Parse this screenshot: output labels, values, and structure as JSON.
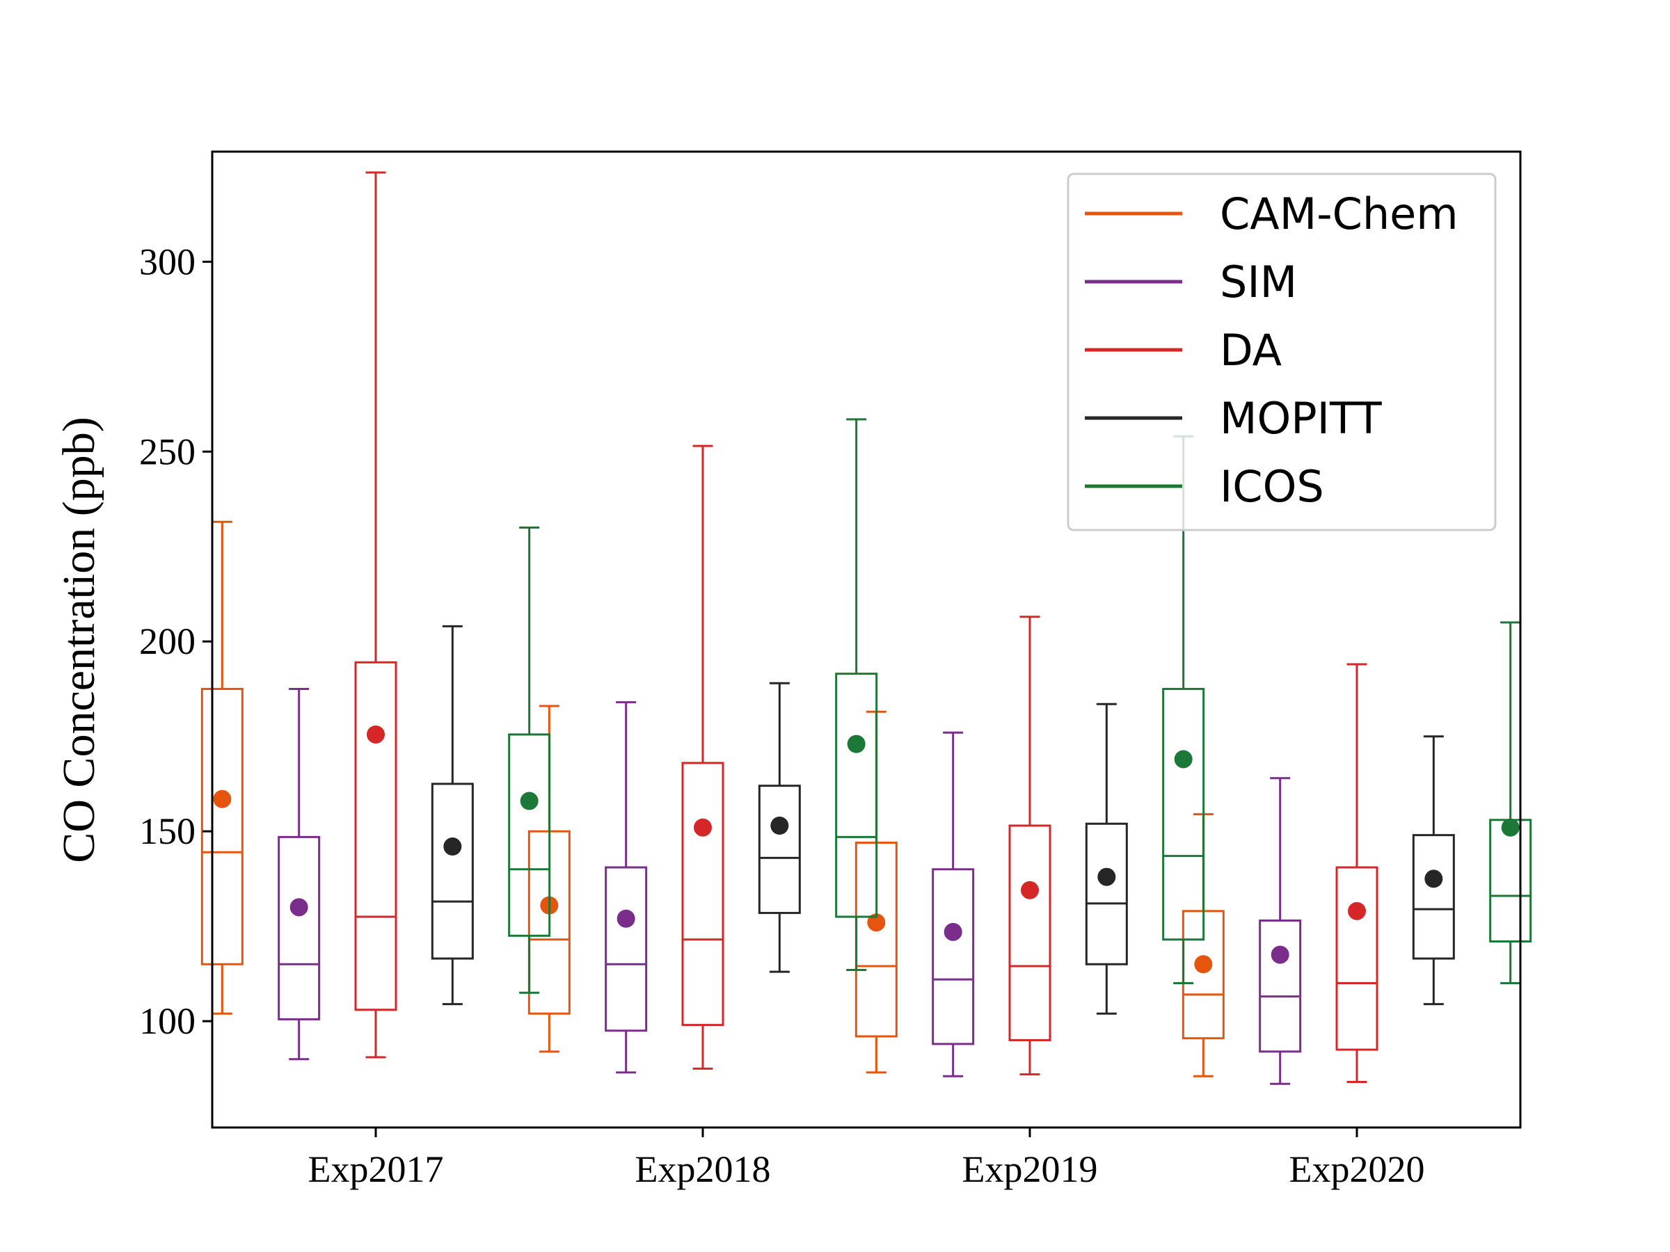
{
  "chart_data": {
    "type": "box",
    "ylabel": "CO Concentration (ppb)",
    "xlabel": "",
    "ylim": [
      72,
      329
    ],
    "yticks": [
      100,
      150,
      200,
      250,
      300
    ],
    "categories": [
      "Exp2017",
      "Exp2018",
      "Exp2019",
      "Exp2020"
    ],
    "legend_position": "top-right",
    "grid": false,
    "series": [
      {
        "name": "CAM-Chem",
        "color": "#e6550d",
        "boxes": [
          {
            "whisker_low": 102,
            "q1": 115,
            "median": 144.5,
            "q3": 187.5,
            "whisker_high": 231.5,
            "mean": 158.5
          },
          {
            "whisker_low": 92,
            "q1": 102,
            "median": 121.5,
            "q3": 150,
            "whisker_high": 183,
            "mean": 130.5
          },
          {
            "whisker_low": 86.5,
            "q1": 96,
            "median": 114.5,
            "q3": 147,
            "whisker_high": 181.5,
            "mean": 126
          },
          {
            "whisker_low": 85.5,
            "q1": 95.5,
            "median": 107,
            "q3": 129,
            "whisker_high": 154.5,
            "mean": 115
          }
        ]
      },
      {
        "name": "SIM",
        "color": "#7b2d8b",
        "boxes": [
          {
            "whisker_low": 90,
            "q1": 100.5,
            "median": 115,
            "q3": 148.5,
            "whisker_high": 187.5,
            "mean": 130
          },
          {
            "whisker_low": 86.5,
            "q1": 97.5,
            "median": 115,
            "q3": 140.5,
            "whisker_high": 184,
            "mean": 127
          },
          {
            "whisker_low": 85.5,
            "q1": 94,
            "median": 111,
            "q3": 140,
            "whisker_high": 176,
            "mean": 123.5
          },
          {
            "whisker_low": 83.5,
            "q1": 92,
            "median": 106.5,
            "q3": 126.5,
            "whisker_high": 164,
            "mean": 117.5
          }
        ]
      },
      {
        "name": "DA",
        "color": "#d62728",
        "boxes": [
          {
            "whisker_low": 90.5,
            "q1": 103,
            "median": 127.5,
            "q3": 194.5,
            "whisker_high": 323.5,
            "mean": 175.5
          },
          {
            "whisker_low": 87.5,
            "q1": 99,
            "median": 121.5,
            "q3": 168,
            "whisker_high": 251.5,
            "mean": 151
          },
          {
            "whisker_low": 86,
            "q1": 95,
            "median": 114.5,
            "q3": 151.5,
            "whisker_high": 206.5,
            "mean": 134.5
          },
          {
            "whisker_low": 84,
            "q1": 92.5,
            "median": 110,
            "q3": 140.5,
            "whisker_high": 194,
            "mean": 129
          }
        ]
      },
      {
        "name": "MOPITT",
        "color": "#262626",
        "boxes": [
          {
            "whisker_low": 104.5,
            "q1": 116.5,
            "median": 131.5,
            "q3": 162.5,
            "whisker_high": 204,
            "mean": 146
          },
          {
            "whisker_low": 113,
            "q1": 128.5,
            "median": 143,
            "q3": 162,
            "whisker_high": 189,
            "mean": 151.5
          },
          {
            "whisker_low": 102,
            "q1": 115,
            "median": 131,
            "q3": 152,
            "whisker_high": 183.5,
            "mean": 138
          },
          {
            "whisker_low": 104.5,
            "q1": 116.5,
            "median": 129.5,
            "q3": 149,
            "whisker_high": 175,
            "mean": 137.5
          }
        ]
      },
      {
        "name": "ICOS",
        "color": "#1b7837",
        "boxes": [
          {
            "whisker_low": 107.5,
            "q1": 122.5,
            "median": 140,
            "q3": 175.5,
            "whisker_high": 230,
            "mean": 158
          },
          {
            "whisker_low": 113.5,
            "q1": 127.5,
            "median": 148.5,
            "q3": 191.5,
            "whisker_high": 258.5,
            "mean": 173
          },
          {
            "whisker_low": 110,
            "q1": 121.5,
            "median": 143.5,
            "q3": 187.5,
            "whisker_high": 254,
            "mean": 169
          },
          {
            "whisker_low": 110,
            "q1": 121,
            "median": 133,
            "q3": 153,
            "whisker_high": 205,
            "mean": 151
          }
        ]
      }
    ]
  }
}
